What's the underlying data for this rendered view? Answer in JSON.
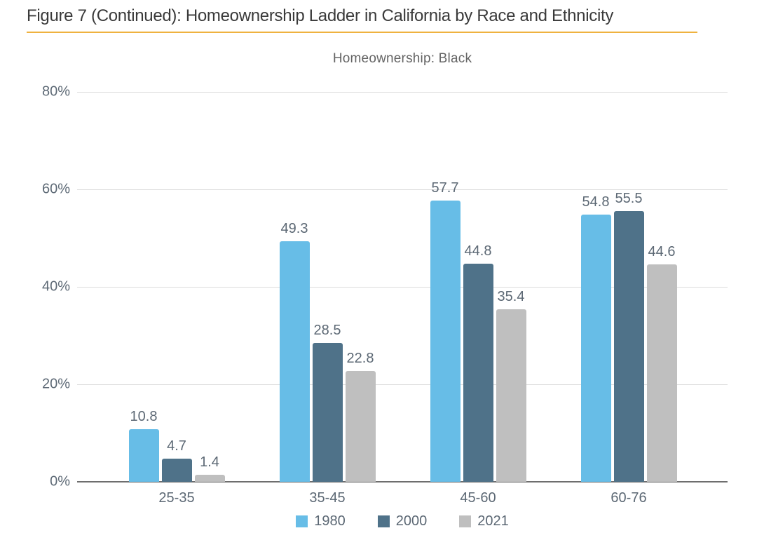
{
  "figure": {
    "title": "Figure 7 (Continued): Homeownership Ladder in California by Race and Ethnicity",
    "subtitle": "Homeownership: Black"
  },
  "colors": {
    "accent_rule": "#EFB23F",
    "series_1980": "#67BDE7",
    "series_2000": "#4F7289",
    "series_2021": "#BFBFBF",
    "gridline": "#dcdcdc",
    "axis_line": "#6e6e6e",
    "text_labels": "#5c6874"
  },
  "chart_data": {
    "type": "bar",
    "title": "Homeownership: Black",
    "categories": [
      "25-35",
      "35-45",
      "45-60",
      "60-76"
    ],
    "series": [
      {
        "name": "1980",
        "color": "#67BDE7",
        "values": [
          10.8,
          49.3,
          57.7,
          54.8
        ]
      },
      {
        "name": "2000",
        "color": "#4F7289",
        "values": [
          4.7,
          28.5,
          44.8,
          55.5
        ]
      },
      {
        "name": "2021",
        "color": "#BFBFBF",
        "values": [
          1.4,
          22.8,
          35.4,
          44.6
        ]
      }
    ],
    "xlabel": "",
    "ylabel": "",
    "ylim": [
      0,
      80
    ],
    "ytick_labels": [
      "80%",
      "60%",
      "40%",
      "20%",
      "0%"
    ],
    "grid": "horizontal",
    "legend_position": "bottom",
    "value_labels_shown": true,
    "value_label_decimals": 1
  }
}
